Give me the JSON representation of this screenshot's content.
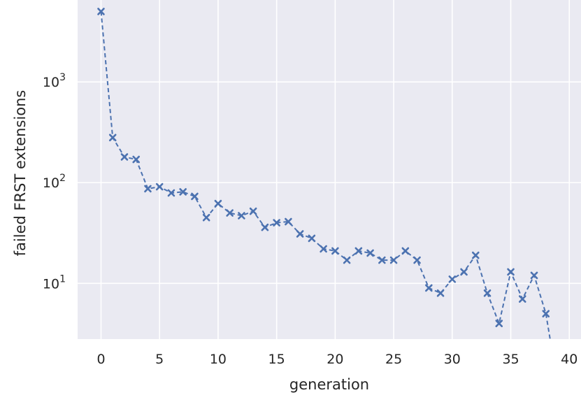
{
  "chart_data": {
    "type": "line",
    "xlabel": "generation",
    "ylabel": "failed FRST extensions",
    "xlim": [
      -2,
      41
    ],
    "ylim": [
      2.8,
      6500
    ],
    "yscale": "log",
    "xticks": [
      0,
      5,
      10,
      15,
      20,
      25,
      30,
      35,
      40
    ],
    "yticks": [
      {
        "value": 10,
        "base": "10",
        "exp": "1"
      },
      {
        "value": 100,
        "base": "10",
        "exp": "2"
      },
      {
        "value": 1000,
        "base": "10",
        "exp": "3"
      }
    ],
    "grid": true,
    "background": "#eaeaf2",
    "series": [
      {
        "color": "#4c72b0",
        "linestyle": "dashed",
        "marker": "x",
        "x": [
          0,
          1,
          2,
          3,
          4,
          5,
          6,
          7,
          8,
          9,
          10,
          11,
          12,
          13,
          14,
          15,
          16,
          17,
          18,
          19,
          20,
          21,
          22,
          23,
          24,
          25,
          26,
          27,
          28,
          29,
          30,
          31,
          32,
          33,
          34,
          35,
          36,
          37,
          38,
          39
        ],
        "y": [
          5000,
          280,
          180,
          170,
          87,
          91,
          79,
          81,
          73,
          45,
          62,
          50,
          47,
          52,
          36,
          40,
          41,
          31,
          28,
          22,
          21,
          17,
          21,
          20,
          17,
          17,
          21,
          17,
          9,
          8,
          11,
          13,
          19,
          8,
          4,
          13,
          7,
          12,
          5,
          1
        ]
      }
    ]
  }
}
